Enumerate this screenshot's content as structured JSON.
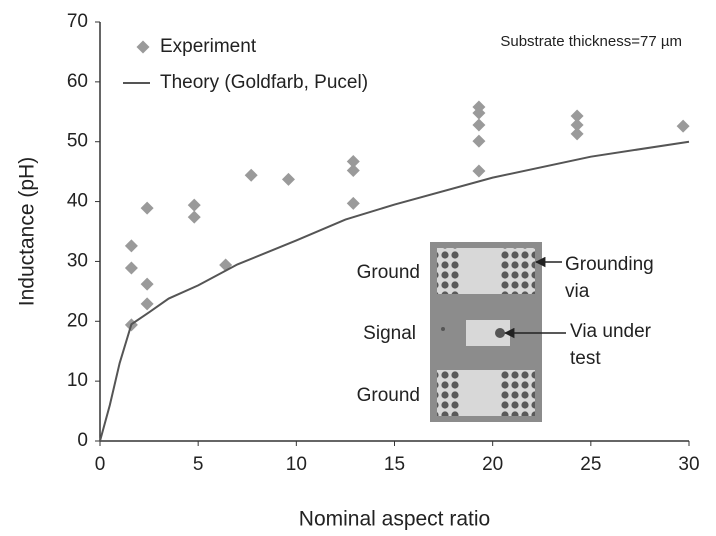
{
  "chart_data": {
    "type": "scatter",
    "x_label": "Nominal aspect ratio",
    "y_label": "Inductance (pH)",
    "xlim": [
      0,
      30
    ],
    "xticks": [
      0,
      5,
      10,
      15,
      20,
      25,
      30
    ],
    "ylim": [
      0,
      70
    ],
    "yticks": [
      0,
      10,
      20,
      30,
      40,
      50,
      60,
      70
    ],
    "legend": "top-left",
    "annotation": "Substrate thickness=77 µm",
    "series": [
      {
        "name": "Experiment",
        "type": "scatter",
        "color": "#9a9a9a",
        "x": [
          1.6,
          1.6,
          1.6,
          2.4,
          2.4,
          2.4,
          4.8,
          4.8,
          6.4,
          7.7,
          9.6,
          12.9,
          12.9,
          12.9,
          19.3,
          19.3,
          19.3,
          19.3,
          19.3,
          24.3,
          24.3,
          24.3,
          29.7
        ],
        "values": [
          32.6,
          28.9,
          19.4,
          38.9,
          26.2,
          22.9,
          39.4,
          37.4,
          29.4,
          44.4,
          43.7,
          46.7,
          45.2,
          39.7,
          55.8,
          54.8,
          52.8,
          50.1,
          45.1,
          54.3,
          52.8,
          51.3,
          52.6
        ]
      },
      {
        "name": "Theory (Goldfarb, Pucel)",
        "type": "line",
        "color": "#555555",
        "x": [
          0,
          0.5,
          1,
          1.6,
          2.5,
          3.5,
          5,
          7,
          10,
          12.5,
          15,
          20,
          25,
          30
        ],
        "values": [
          0,
          6,
          13,
          19.5,
          21.5,
          23.8,
          26,
          29.5,
          33.5,
          37,
          39.5,
          44,
          47.5,
          50
        ]
      }
    ],
    "inset": {
      "labels": [
        {
          "lines": [
            "Ground"
          ]
        },
        {
          "lines": [
            "Signal"
          ]
        },
        {
          "lines": [
            "Ground"
          ]
        },
        {
          "lines": [
            "Grounding",
            "via"
          ]
        },
        {
          "lines": [
            "Via under",
            "test"
          ]
        }
      ]
    }
  }
}
